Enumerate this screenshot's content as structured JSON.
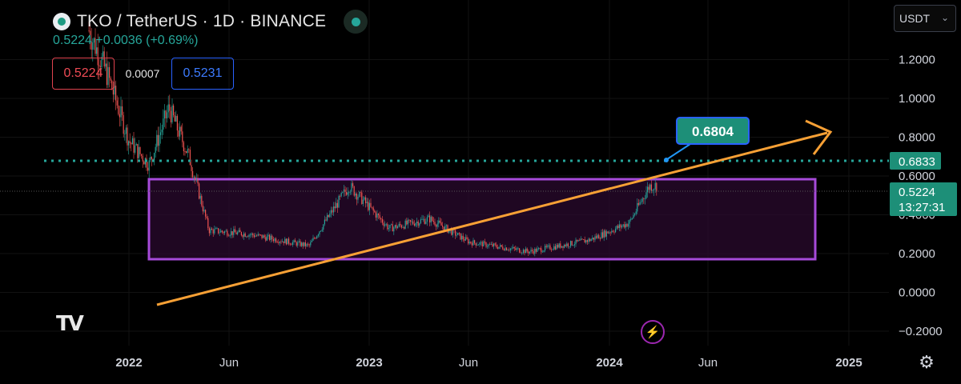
{
  "header": {
    "title": "TKO / TetherUS · 1D · BINANCE",
    "change_text": "0.5224  +0.0036 (+0.69%)",
    "sell_price": "0.5224",
    "spread": "0.0007",
    "buy_price": "0.5231"
  },
  "currency_selector": {
    "value": "USDT"
  },
  "chart_data": {
    "type": "candlestick",
    "symbol": "TKO/USDT",
    "interval": "1D",
    "exchange": "BINANCE",
    "y_axis_ticks": [
      "1.2000",
      "1.0000",
      "0.8000",
      "0.6000",
      "0.4000",
      "0.2000",
      "0.0000",
      "−0.2000"
    ],
    "x_axis_ticks": [
      "2022",
      "Jun",
      "2023",
      "Jun",
      "2024",
      "Jun",
      "2025"
    ],
    "ylim": [
      -0.25,
      1.45
    ],
    "approx_close_path": [
      {
        "t": "2021-11",
        "v": 1.35
      },
      {
        "t": "2021-12",
        "v": 1.1
      },
      {
        "t": "2022-01",
        "v": 0.78
      },
      {
        "t": "2022-02",
        "v": 0.66
      },
      {
        "t": "2022-03",
        "v": 0.95
      },
      {
        "t": "2022-04",
        "v": 0.7
      },
      {
        "t": "2022-05",
        "v": 0.32
      },
      {
        "t": "2022-07",
        "v": 0.3
      },
      {
        "t": "2022-10",
        "v": 0.24
      },
      {
        "t": "2022-12",
        "v": 0.55
      },
      {
        "t": "2023-02",
        "v": 0.33
      },
      {
        "t": "2023-04",
        "v": 0.38
      },
      {
        "t": "2023-06",
        "v": 0.26
      },
      {
        "t": "2023-09",
        "v": 0.21
      },
      {
        "t": "2023-12",
        "v": 0.27
      },
      {
        "t": "2024-02",
        "v": 0.36
      },
      {
        "t": "2024-03",
        "v": 0.55
      }
    ],
    "last_price": "0.5224",
    "last_price_countdown": "13:27:31",
    "resistance_level": "0.6833",
    "annotation_price": "0.6804",
    "range_box": {
      "low": 0.18,
      "high": 0.59,
      "color": "#9c27b0"
    },
    "trendline_color": "#f7a035",
    "resistance_color": "#26a69a"
  }
}
